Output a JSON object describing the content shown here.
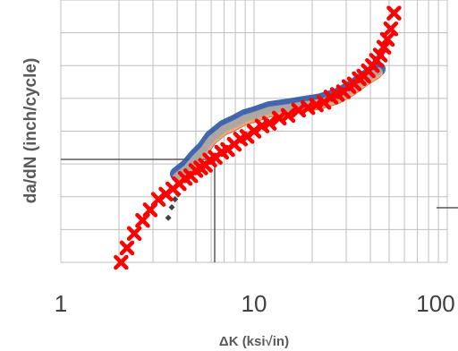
{
  "chart_data": {
    "type": "scatter",
    "xlabel": "ΔK (ksi√in)",
    "ylabel": "da/dN (inch/cycle)",
    "x_scale": "log",
    "x_ticks": [
      1,
      10,
      100
    ],
    "x_tick_labels": [
      "1",
      "10",
      "100"
    ],
    "xlim": [
      1,
      100
    ],
    "y_tick_labels": [],
    "grid": true,
    "colors": {
      "marker_x": "#ff0000",
      "blue_band": "#2f55a4",
      "brown_band": "#a65f2a",
      "gray_band": "#a6a6a6",
      "peach_band": "#f4b183",
      "dark_diamonds": "#404040",
      "grid": "#bfbfbf"
    },
    "series": [
      {
        "marker": "x",
        "x": [
          2.05,
          2.2,
          2.4,
          2.65,
          2.9,
          3.2,
          3.5,
          3.8,
          4.1,
          4.4,
          4.7,
          5.0,
          5.3,
          5.6,
          5.9,
          6.3,
          6.8,
          7.3,
          7.9,
          8.5,
          9.2,
          10.0,
          11.0,
          12.0,
          13.5,
          15.0,
          17.0,
          19.0,
          21.0,
          23.0,
          25.0,
          27.0,
          29.0,
          31.0,
          33.0,
          35.0,
          37.0,
          39.0,
          41.0,
          43.0,
          45.0,
          47.0,
          49.0,
          51.0,
          53.0
        ],
        "y": [
          0.0,
          0.055,
          0.11,
          0.16,
          0.2,
          0.24,
          0.26,
          0.28,
          0.3,
          0.32,
          0.33,
          0.35,
          0.36,
          0.37,
          0.39,
          0.4,
          0.42,
          0.43,
          0.45,
          0.47,
          0.48,
          0.5,
          0.52,
          0.53,
          0.55,
          0.56,
          0.58,
          0.59,
          0.6,
          0.61,
          0.63,
          0.64,
          0.65,
          0.67,
          0.68,
          0.7,
          0.71,
          0.73,
          0.75,
          0.77,
          0.79,
          0.82,
          0.85,
          0.89,
          0.95
        ]
      },
      {
        "marker": "band",
        "x": [
          4.0,
          4.5,
          5.0,
          5.5,
          6.0,
          7.0,
          8.0,
          9.0,
          10.0,
          12.0,
          15.0,
          18.0,
          22.0,
          27.0,
          32.0,
          38.0,
          44.0
        ],
        "y": [
          0.33,
          0.36,
          0.4,
          0.43,
          0.47,
          0.51,
          0.53,
          0.55,
          0.56,
          0.58,
          0.59,
          0.6,
          0.61,
          0.63,
          0.66,
          0.7,
          0.73
        ]
      },
      {
        "marker": "diamond",
        "x": [
          3.6,
          3.75,
          3.9,
          4.05
        ],
        "y": [
          0.17,
          0.21,
          0.24,
          0.26
        ]
      }
    ]
  }
}
